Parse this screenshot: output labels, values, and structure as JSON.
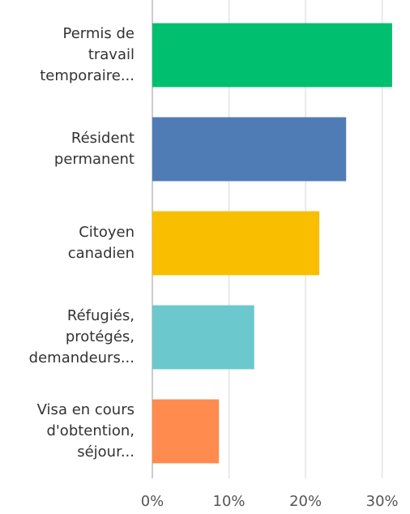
{
  "chart_data": {
    "type": "bar",
    "orientation": "horizontal",
    "categories": [
      "Permis de travail temporaire...",
      "Résident permanent",
      "Citoyen canadien",
      "Réfugiés, protégés, demandeurs...",
      "Visa en cours d'obtention, séjour..."
    ],
    "values": [
      31.3,
      25.3,
      21.8,
      13.3,
      8.7
    ],
    "colors": [
      "#00bf6f",
      "#507cb6",
      "#f9be00",
      "#6bc8cd",
      "#ff8b4f"
    ],
    "xlim": [
      0,
      33
    ],
    "xticks": [
      {
        "value": 0,
        "label": "0%"
      },
      {
        "value": 10,
        "label": "10%"
      },
      {
        "value": 20,
        "label": "20%"
      },
      {
        "value": 30,
        "label": "30%"
      }
    ],
    "grid": true
  }
}
